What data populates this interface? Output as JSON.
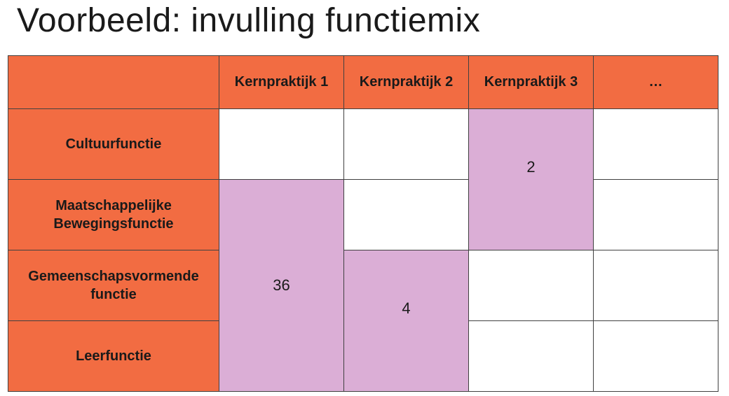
{
  "title": "Voorbeeld: invulling functiemix",
  "table": {
    "col_headers": [
      "",
      "Kernpraktijk 1",
      "Kernpraktijk 2",
      "Kernpraktijk 3",
      "…"
    ],
    "row_headers": [
      "Cultuurfunctie",
      "Maatschappelijke Bewegingsfunctie",
      "Gemeenschapsvormende functie",
      "Leerfunctie"
    ],
    "merged_cells": [
      {
        "column": "Kernpraktijk 1",
        "rows_spanned": [
          "Maatschappelijke Bewegingsfunctie",
          "Gemeenschapsvormende functie",
          "Leerfunctie"
        ],
        "value": "36"
      },
      {
        "column": "Kernpraktijk 2",
        "rows_spanned": [
          "Gemeenschapsvormende functie",
          "Leerfunctie"
        ],
        "value": "4"
      },
      {
        "column": "Kernpraktijk 3",
        "rows_spanned": [
          "Cultuurfunctie",
          "Maatschappelijke Bewegingsfunctie"
        ],
        "value": "2"
      }
    ]
  },
  "colors": {
    "header_orange": "#F26C42",
    "highlight_pink": "#DBAED6",
    "cell_white": "#FFFFFF",
    "border": "#404040",
    "text": "#1A1A1A"
  }
}
